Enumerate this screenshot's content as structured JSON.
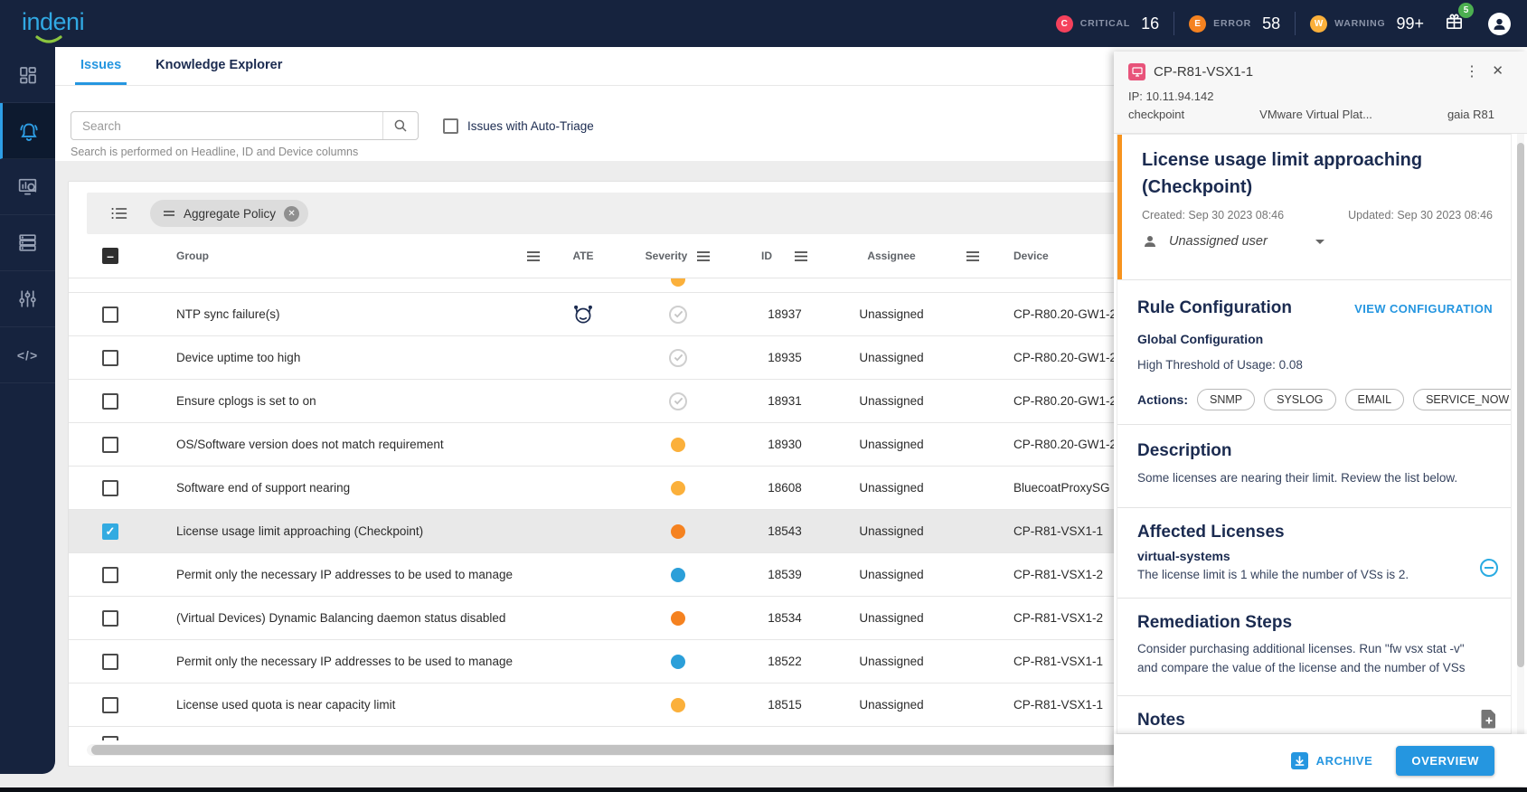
{
  "topbar": {
    "logo": "indeni",
    "statuses": [
      {
        "key": "critical",
        "letter": "C",
        "label": "CRITICAL",
        "count": "16",
        "color": "#F5415C"
      },
      {
        "key": "error",
        "letter": "E",
        "label": "ERROR",
        "count": "58",
        "color": "#F58220"
      },
      {
        "key": "warning",
        "letter": "W",
        "label": "WARNING",
        "count": "99+",
        "color": "#FBB03B"
      }
    ],
    "gift_badge": "5"
  },
  "sidebar": {
    "items": [
      {
        "name": "dashboard",
        "active": false
      },
      {
        "name": "alerts",
        "active": true
      },
      {
        "name": "analysis",
        "active": false
      },
      {
        "name": "devices",
        "active": false
      },
      {
        "name": "settings",
        "active": false
      },
      {
        "name": "automation",
        "active": false
      }
    ]
  },
  "tabs": {
    "issues": "Issues",
    "knowledge_explorer": "Knowledge Explorer"
  },
  "search": {
    "placeholder": "Search",
    "helper": "Search is performed on Headline, ID and Device columns",
    "auto_triage_label": "Issues with Auto-Triage"
  },
  "filter": {
    "chip_label": "Aggregate Policy"
  },
  "table": {
    "columns": {
      "group": "Group",
      "ate": "ATE",
      "severity": "Severity",
      "id": "ID",
      "assignee": "Assignee",
      "device": "Device"
    },
    "rows": [
      {
        "headline": "NTP sync failure(s)",
        "ate": true,
        "severity": "ok",
        "id": "18937",
        "assignee": "Unassigned",
        "device": "CP-R80.20-GW1-2",
        "selected": false
      },
      {
        "headline": "Device uptime too high",
        "ate": false,
        "severity": "ok",
        "id": "18935",
        "assignee": "Unassigned",
        "device": "CP-R80.20-GW1-2",
        "selected": false
      },
      {
        "headline": "Ensure cplogs is set to on",
        "ate": false,
        "severity": "ok",
        "id": "18931",
        "assignee": "Unassigned",
        "device": "CP-R80.20-GW1-2",
        "selected": false
      },
      {
        "headline": "OS/Software version does not match requirement",
        "ate": false,
        "severity": "warning",
        "id": "18930",
        "assignee": "Unassigned",
        "device": "CP-R80.20-GW1-2",
        "selected": false
      },
      {
        "headline": "Software end of support nearing",
        "ate": false,
        "severity": "warning",
        "id": "18608",
        "assignee": "Unassigned",
        "device": "BluecoatProxySG",
        "selected": false
      },
      {
        "headline": "License usage limit approaching (Checkpoint)",
        "ate": false,
        "severity": "error",
        "id": "18543",
        "assignee": "Unassigned",
        "device": "CP-R81-VSX1-1",
        "selected": true
      },
      {
        "headline": "Permit only the necessary IP addresses to be used to manage th",
        "ate": false,
        "severity": "info",
        "id": "18539",
        "assignee": "Unassigned",
        "device": "CP-R81-VSX1-2",
        "selected": false
      },
      {
        "headline": "(Virtual Devices) Dynamic Balancing daemon status disabled",
        "ate": false,
        "severity": "error",
        "id": "18534",
        "assignee": "Unassigned",
        "device": "CP-R81-VSX1-2",
        "selected": false
      },
      {
        "headline": "Permit only the necessary IP addresses to be used to manage th",
        "ate": false,
        "severity": "info",
        "id": "18522",
        "assignee": "Unassigned",
        "device": "CP-R81-VSX1-1",
        "selected": false
      },
      {
        "headline": "License used quota is near capacity limit",
        "ate": false,
        "severity": "warning",
        "id": "18515",
        "assignee": "Unassigned",
        "device": "CP-R81-VSX1-1",
        "selected": false
      }
    ]
  },
  "panel": {
    "device": {
      "name": "CP-R81-VSX1-1",
      "ip": "IP: 10.11.94.142",
      "vendor": "checkpoint",
      "platform": "VMware Virtual Plat...",
      "os": "gaia R81"
    },
    "issue": {
      "title": "License usage limit approaching (Checkpoint)",
      "created": "Created: Sep 30 2023 08:46",
      "updated": "Updated: Sep 30 2023 08:46",
      "assignee": "Unassigned user"
    },
    "rule_configuration": {
      "heading": "Rule Configuration",
      "view_link": "VIEW CONFIGURATION",
      "subheading": "Global Configuration",
      "threshold": "High Threshold of Usage: 0.08",
      "actions_label": "Actions:",
      "actions": [
        "SNMP",
        "SYSLOG",
        "EMAIL",
        "SERVICE_NOW"
      ]
    },
    "description": {
      "heading": "Description",
      "text": "Some licenses are nearing their limit. Review the list below."
    },
    "affected_licenses": {
      "heading": "Affected Licenses",
      "item_name": "virtual-systems",
      "item_text": "The license limit is 1 while the number of VSs is 2."
    },
    "remediation": {
      "heading": "Remediation Steps",
      "text": "Consider purchasing additional licenses. Run \"fw vsx stat -v\" and compare the value of the license and the number of VSs"
    },
    "notes_heading": "Notes",
    "actions": {
      "archive": "ARCHIVE",
      "overview": "OVERVIEW"
    }
  },
  "colors": {
    "severity": {
      "ok": "#cfcfcf",
      "warning": "#FBB03B",
      "error": "#F58220",
      "info": "#2B9FD9"
    },
    "accent": "#2596E0",
    "navy": "#1B2B50"
  }
}
